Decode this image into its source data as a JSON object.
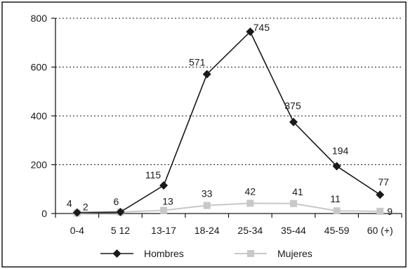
{
  "chart_data": {
    "type": "line",
    "categories": [
      "0-4",
      "5 12",
      "13-17",
      "18-24",
      "25-34",
      "35-44",
      "45-59",
      "60 (+)"
    ],
    "series": [
      {
        "name": "Hombres",
        "values": [
          4,
          6,
          115,
          571,
          745,
          375,
          194,
          77
        ],
        "labels": [
          "4",
          "6",
          "115",
          "571",
          "745",
          "375",
          "194",
          "77"
        ],
        "color": "#1a1a1a",
        "marker": "diamond"
      },
      {
        "name": "Mujeres",
        "values": [
          2,
          6,
          13,
          33,
          42,
          41,
          11,
          9
        ],
        "labels": [
          "2",
          "",
          "13",
          "33",
          "42",
          "41",
          "11",
          "9"
        ],
        "color": "#c8c8c8",
        "marker": "square"
      }
    ],
    "yticks": [
      "0",
      "200",
      "400",
      "600",
      "800"
    ],
    "ylim": [
      0,
      800
    ],
    "grid": "dotted horizontal",
    "legend": "bottom"
  }
}
